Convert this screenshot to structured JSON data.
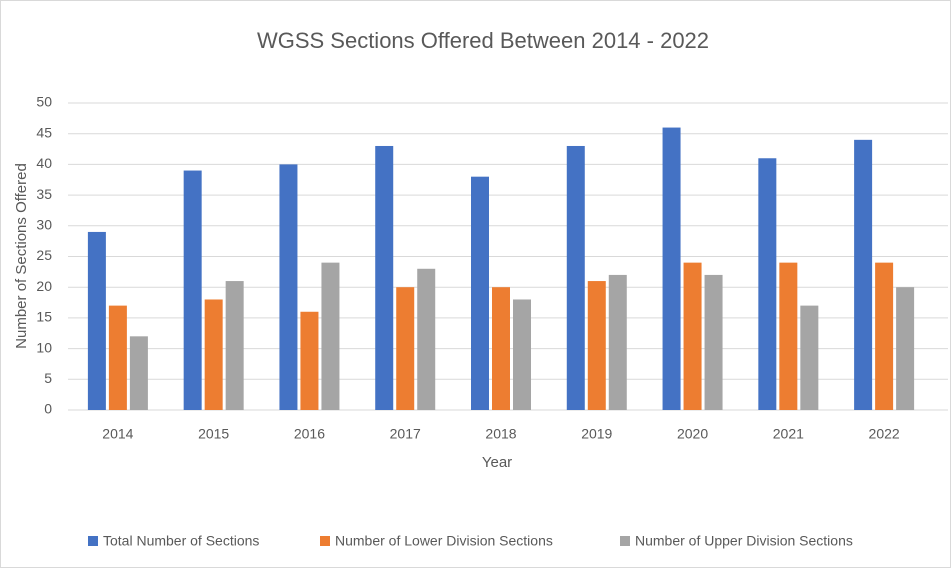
{
  "chart_data": {
    "type": "bar",
    "title": "WGSS Sections Offered Between 2014 - 2022",
    "x_label": "Year",
    "y_label": "Number of Sections Offered",
    "categories": [
      "2014",
      "2015",
      "2016",
      "2017",
      "2018",
      "2019",
      "2020",
      "2021",
      "2022"
    ],
    "series": [
      {
        "name": "Total Number of Sections",
        "color": "#4472c4",
        "values": [
          29,
          39,
          40,
          43,
          38,
          43,
          46,
          41,
          44
        ]
      },
      {
        "name": "Number of Lower Division Sections",
        "color": "#ed7d31",
        "values": [
          17,
          18,
          16,
          20,
          20,
          21,
          24,
          24,
          24
        ]
      },
      {
        "name": "Number of Upper Division Sections",
        "color": "#a5a5a5",
        "values": [
          12,
          21,
          24,
          23,
          18,
          22,
          22,
          17,
          20
        ]
      }
    ],
    "ylim": [
      0,
      50
    ],
    "yticks": [
      0,
      5,
      10,
      15,
      20,
      25,
      30,
      35,
      40,
      45,
      50
    ],
    "grid": true,
    "legend": "bottom"
  }
}
